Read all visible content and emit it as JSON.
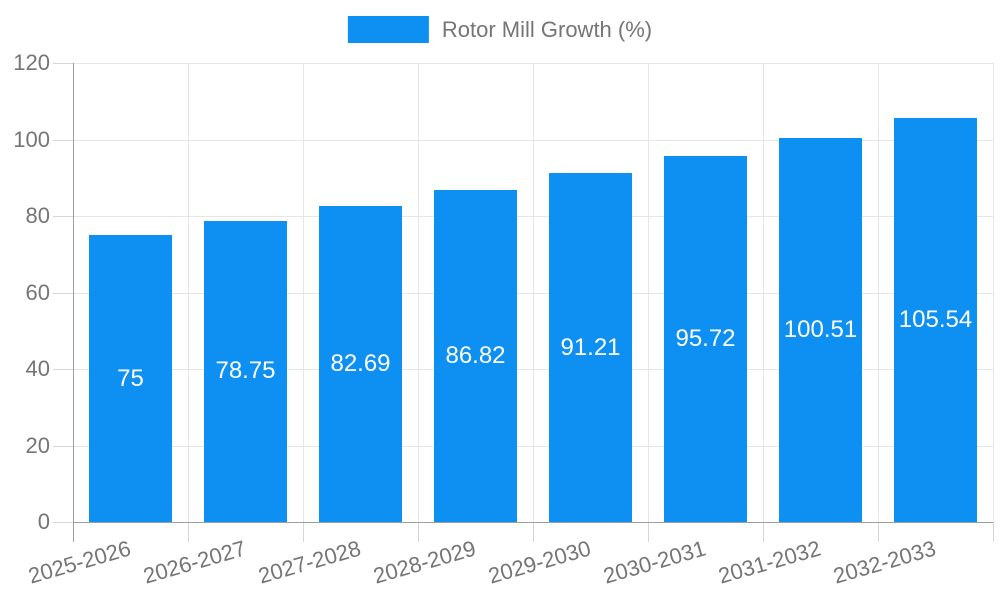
{
  "legend": {
    "label": "Rotor Mill Growth (%)"
  },
  "chart_data": {
    "type": "bar",
    "title": "Rotor Mill Growth (%)",
    "categories": [
      "2025-2026",
      "2026-2027",
      "2027-2028",
      "2028-2029",
      "2029-2030",
      "2030-2031",
      "2031-2032",
      "2032-2033"
    ],
    "values": [
      75,
      78.75,
      82.69,
      86.82,
      91.21,
      95.72,
      100.51,
      105.54
    ],
    "value_labels": [
      "75",
      "78.75",
      "82.69",
      "86.82",
      "91.21",
      "95.72",
      "100.51",
      "105.54"
    ],
    "xlabel": "",
    "ylabel": "",
    "ylim": [
      0,
      120
    ],
    "yticks": [
      0,
      20,
      40,
      60,
      80,
      100,
      120
    ],
    "grid": true,
    "legend_position": "top-center",
    "colors": {
      "bar": "#0d90f2",
      "bar_value_text": "#ffffff",
      "axis_text": "#757575",
      "axis_line": "#9e9e9e",
      "gridline": "#e6e6e6",
      "tick": "#d6d6d6"
    }
  }
}
